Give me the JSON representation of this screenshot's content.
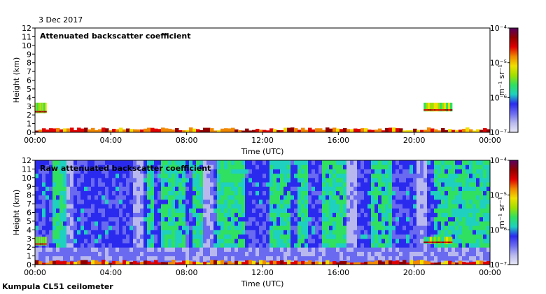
{
  "date_label": "3 Dec 2017",
  "footer_label": "Kumpula CL51 ceilometer",
  "colors": {
    "scale": [
      "#e8e8f6",
      "#b8b8ee",
      "#6a6af0",
      "#2a2aee",
      "#1fd0c0",
      "#30e060",
      "#a0e000",
      "#f0e000",
      "#f08800",
      "#e00000",
      "#900000",
      "#5a0060"
    ]
  },
  "chart_data": [
    {
      "type": "heatmap",
      "title": "Attenuated backscatter coefficient",
      "xlabel": "Time (UTC)",
      "ylabel": "Height (km)",
      "x_ticks": [
        "00:00",
        "04:00",
        "08:00",
        "12:00",
        "16:00",
        "20:00",
        "00:00"
      ],
      "x_range_hours": [
        0,
        24
      ],
      "y_ticks": [
        "0",
        "1",
        "2",
        "3",
        "4",
        "5",
        "6",
        "7",
        "8",
        "9",
        "10",
        "11",
        "12"
      ],
      "y_range_km": [
        0,
        12
      ],
      "colorbar": {
        "unit": "m⁻¹ sr⁻¹",
        "ticks": [
          "10⁻⁴",
          "10⁻⁵",
          "10⁻⁶",
          "10⁻⁷"
        ],
        "scale": "log",
        "range": [
          1e-07,
          0.0001
        ]
      },
      "features": {
        "surface_layer_top_km": 0.4,
        "cloud_layers": [
          {
            "t_start_h": 0.0,
            "t_end_h": 0.6,
            "base_km": 2.2,
            "top_km": 3.4
          },
          {
            "t_start_h": 20.5,
            "t_end_h": 22.0,
            "base_km": 2.4,
            "top_km": 3.4
          }
        ]
      }
    },
    {
      "type": "heatmap",
      "title": "Raw attenuated backscatter coefficient",
      "xlabel": "Time (UTC)",
      "ylabel": "Height (km)",
      "x_ticks": [
        "00:00",
        "04:00",
        "08:00",
        "12:00",
        "16:00",
        "20:00",
        "00:00"
      ],
      "x_range_hours": [
        0,
        24
      ],
      "y_ticks": [
        "0",
        "1",
        "2",
        "3",
        "4",
        "5",
        "6",
        "7",
        "8",
        "9",
        "10",
        "11",
        "12"
      ],
      "y_range_km": [
        0,
        12
      ],
      "colorbar": {
        "unit": "m⁻¹ sr⁻¹",
        "ticks": [
          "10⁻⁴",
          "10⁻⁵",
          "10⁻⁶",
          "10⁻⁷"
        ],
        "scale": "log",
        "range": [
          1e-07,
          0.0001
        ]
      },
      "features": {
        "surface_layer_top_km": 0.4,
        "noisy_background": true,
        "cloud_layers": [
          {
            "t_start_h": 0.0,
            "t_end_h": 0.6,
            "base_km": 2.2,
            "top_km": 3.2
          },
          {
            "t_start_h": 20.5,
            "t_end_h": 22.0,
            "base_km": 2.4,
            "top_km": 3.2
          }
        ]
      }
    }
  ]
}
